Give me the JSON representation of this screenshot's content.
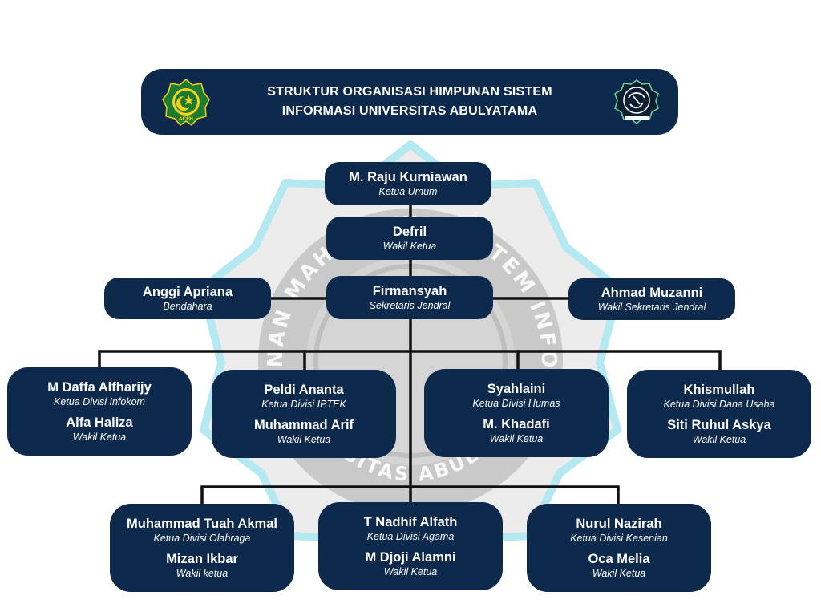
{
  "colors": {
    "navy": "#0d2a4c",
    "line": "#111111",
    "watermark_gray": "#bdbdbd",
    "watermark_cyan": "#a8e6ef",
    "logo_left_green": "#1d7a32",
    "logo_left_yellow": "#f2d21b"
  },
  "header": {
    "title_line1": "STRUKTUR ORGANISASI HIMPUNAN SISTEM",
    "title_line2": "INFORMASI UNIVERSITAS ABULYATAMA",
    "left_logo_text": "ACEH"
  },
  "leaders": {
    "ketua": {
      "name": "M. Raju Kurniawan",
      "role": "Ketua Umum"
    },
    "wakil": {
      "name": "Defril",
      "role": "Wakil Ketua"
    },
    "bendahara": {
      "name": "Anggi Apriana",
      "role": "Bendahara"
    },
    "sekretaris": {
      "name": "Firmansyah",
      "role": "Sekretaris Jendral"
    },
    "wakil_sekretaris": {
      "name": "Ahmad Muzanni",
      "role": "Wakil Sekretaris Jendral"
    }
  },
  "divisions": [
    {
      "head": "M Daffa Alfharijy",
      "head_role": "Ketua Divisi Infokom",
      "deputy": "Alfa Haliza",
      "deputy_role": "Wakil Ketua"
    },
    {
      "head": "Peldi Ananta",
      "head_role": "Ketua Divisi IPTEK",
      "deputy": "Muhammad Arif",
      "deputy_role": "Wakil Ketua"
    },
    {
      "head": "Syahlaini",
      "head_role": "Ketua Divisi Humas",
      "deputy": "M. Khadafi",
      "deputy_role": "Wakil Ketua"
    },
    {
      "head": "Khismullah",
      "head_role": "Ketua Divisi Dana Usaha",
      "deputy": "Siti Ruhul Askya",
      "deputy_role": "Wakil Ketua"
    },
    {
      "head": "Muhammad Tuah Akmal",
      "head_role": "Ketua Divisi Olahraga",
      "deputy": "Mizan Ikbar",
      "deputy_role": "Wakil ketua"
    },
    {
      "head": "T Nadhif Alfath",
      "head_role": "Ketua Divisi Agama",
      "deputy": "M Djoji Alamni",
      "deputy_role": "Wakil Ketua"
    },
    {
      "head": "Nurul Nazirah",
      "head_role": "Ketua Divisi Kesenian",
      "deputy": "Oca Melia",
      "deputy_role": "Wakil Ketua"
    }
  ],
  "watermark": {
    "ring_top": "HIMPUNAN MAHASISWA SISTEM INFORMASI",
    "ring_bottom": "UNIVERSITAS ABULYATAMA"
  }
}
